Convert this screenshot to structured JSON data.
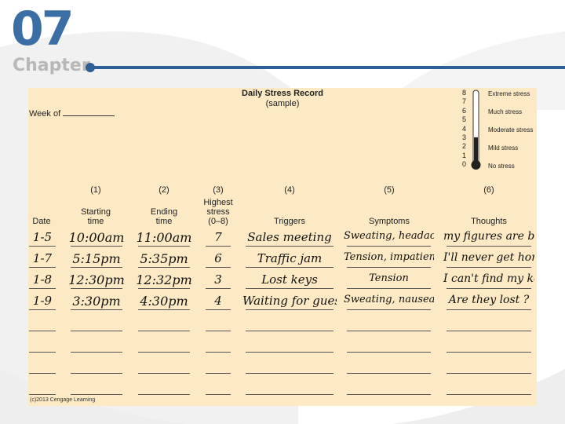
{
  "chapter": {
    "number": "07",
    "label": "Chapter"
  },
  "record": {
    "title": "Daily Stress Record",
    "subtitle": "(sample)",
    "week_label": "Week of",
    "scale": {
      "numbers": [
        "8",
        "7",
        "6",
        "5",
        "4",
        "3",
        "2",
        "1",
        "0"
      ],
      "labels": [
        "Extreme stress",
        "Much stress",
        "Moderate stress",
        "Mild stress",
        "No stress"
      ],
      "filled_level": 3,
      "max_level": 8
    },
    "columns": [
      {
        "num": "",
        "lines": [
          "Date"
        ]
      },
      {
        "num": "(1)",
        "lines": [
          "Starting",
          "time"
        ]
      },
      {
        "num": "(2)",
        "lines": [
          "Ending",
          "time"
        ]
      },
      {
        "num": "(3)",
        "lines": [
          "Highest",
          "stress",
          "(0–8)"
        ]
      },
      {
        "num": "(4)",
        "lines": [
          "Triggers"
        ]
      },
      {
        "num": "(5)",
        "lines": [
          "Symptoms"
        ]
      },
      {
        "num": "(6)",
        "lines": [
          "Thoughts"
        ]
      }
    ],
    "rows": [
      [
        "1-5",
        "10:00am",
        "11:00am",
        "7",
        "Sales meeting",
        "Sweating, headache",
        "my figures are bad"
      ],
      [
        "1-7",
        "5:15pm",
        "5:35pm",
        "6",
        "Traffic jam",
        "Tension, impatience",
        "I'll never get home"
      ],
      [
        "1-8",
        "12:30pm",
        "12:32pm",
        "3",
        "Lost keys",
        "Tension",
        "I can't find my keys"
      ],
      [
        "1-9",
        "3:30pm",
        "4:30pm",
        "4",
        "Waiting for guests",
        "Sweating, nausea",
        "Are they lost ?"
      ]
    ],
    "blank_rows": 4,
    "copyright": "(c)2013 Cengage Learning"
  }
}
